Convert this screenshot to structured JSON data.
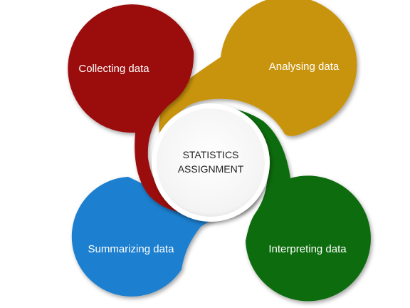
{
  "center": {
    "line1": "STATISTICS",
    "line2": "ASSIGNMENT"
  },
  "petals": [
    {
      "id": "collecting",
      "label": "Collecting data",
      "color": "#9b0a0a"
    },
    {
      "id": "analysing",
      "label": "Analysing data",
      "color": "#c99410"
    },
    {
      "id": "interpreting",
      "label": "Interpreting data",
      "color": "#0f6c0f"
    },
    {
      "id": "summarizing",
      "label": "Summarizing data",
      "color": "#1f7fcf"
    }
  ]
}
